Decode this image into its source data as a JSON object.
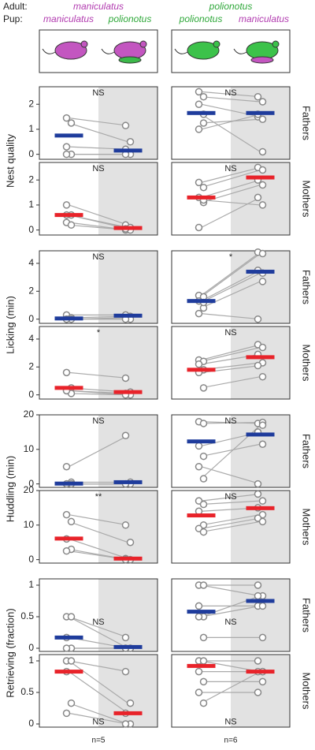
{
  "header": {
    "adult": "Adult:",
    "pup": "Pup:",
    "adult_species": [
      "maniculatus",
      "polionotus"
    ],
    "pup_species": [
      [
        "maniculatus",
        "polionotus"
      ],
      [
        "polionotus",
        "maniculatus"
      ]
    ]
  },
  "footer": [
    "n=5",
    "n=6"
  ],
  "chart_data": [
    {
      "type": "paired",
      "ylabel": "Nest quality",
      "annotation": "NS",
      "ylim": [
        -0.2,
        2.7
      ],
      "yticks": [
        0,
        1,
        2
      ],
      "mean_color": "#1f3c9c",
      "series": [
        {
          "values": [
            1.45,
            1.25,
            0.3,
            0,
            0
          ]
        },
        {
          "values": [
            1.15,
            0.5,
            0.2,
            0,
            0
          ]
        }
      ],
      "means": [
        0.75,
        0.15
      ]
    },
    {
      "type": "paired",
      "row_label": "Fathers",
      "annotation": "NS",
      "ylim": [
        -0.2,
        2.7
      ],
      "mean_color": "#1f3c9c",
      "series": [
        {
          "values": [
            2.5,
            2.3,
            2.0,
            1.25,
            1.0,
            1.6
          ]
        },
        {
          "values": [
            2.3,
            2.1,
            1.5,
            1.4,
            1.6,
            0.1
          ]
        }
      ],
      "means": [
        1.65,
        1.65
      ]
    },
    {
      "type": "paired",
      "annotation": "NS",
      "ylim": [
        -0.2,
        2.7
      ],
      "yticks": [
        0,
        1,
        2
      ],
      "mean_color": "#e8232a",
      "series": [
        {
          "values": [
            1.0,
            0.6,
            0.3,
            0.2,
            0.6
          ]
        },
        {
          "values": [
            0.2,
            0.1,
            0,
            0,
            0.05
          ]
        }
      ],
      "means": [
        0.6,
        0.08
      ]
    },
    {
      "type": "paired",
      "row_label": "Mothers",
      "annotation": "NS",
      "ylim": [
        -0.2,
        2.7
      ],
      "mean_color": "#e8232a",
      "series": [
        {
          "values": [
            1.9,
            1.7,
            1.3,
            1.1,
            0.1,
            1.2
          ]
        },
        {
          "values": [
            2.5,
            2.4,
            2.0,
            1.8,
            1.3,
            1.0
          ]
        }
      ],
      "means": [
        1.3,
        2.1
      ]
    },
    {
      "type": "paired",
      "ylabel": "Licking (min)",
      "annotation": "NS",
      "ylim": [
        -0.3,
        4.9
      ],
      "yticks": [
        0,
        2,
        4
      ],
      "mean_color": "#1f3c9c",
      "series": [
        {
          "values": [
            0.3,
            0.1,
            0,
            0,
            0
          ]
        },
        {
          "values": [
            0.3,
            0.2,
            0.1,
            0,
            0
          ]
        }
      ],
      "means": [
        0.05,
        0.25
      ]
    },
    {
      "type": "paired",
      "row_label": "Fathers",
      "annotation": "*",
      "ylim": [
        -0.3,
        4.9
      ],
      "mean_color": "#1f3c9c",
      "series": [
        {
          "values": [
            1.7,
            1.6,
            1.3,
            0.8,
            0.4,
            1.2
          ]
        },
        {
          "values": [
            4.8,
            4.7,
            3.5,
            2.7,
            0,
            3.3
          ]
        }
      ],
      "means": [
        1.3,
        3.4
      ]
    },
    {
      "type": "paired",
      "annotation": "*",
      "ylim": [
        -0.3,
        4.9
      ],
      "yticks": [
        0,
        2,
        4
      ],
      "mean_color": "#e8232a",
      "series": [
        {
          "values": [
            1.6,
            0.5,
            0.3,
            0.1,
            0.3
          ]
        },
        {
          "values": [
            1.2,
            0.2,
            0.1,
            0,
            0
          ]
        }
      ],
      "means": [
        0.5,
        0.2
      ]
    },
    {
      "type": "paired",
      "row_label": "Mothers",
      "annotation": "NS",
      "ylim": [
        -0.3,
        4.9
      ],
      "mean_color": "#e8232a",
      "series": [
        {
          "values": [
            2.5,
            2.4,
            2.2,
            1.8,
            1.6,
            0.5
          ]
        },
        {
          "values": [
            3.6,
            3.4,
            2.9,
            2.3,
            2.1,
            1.3
          ]
        }
      ],
      "means": [
        1.8,
        2.7
      ]
    },
    {
      "type": "paired",
      "ylabel": "Huddling (min)",
      "annotation": "NS",
      "ylim": [
        -1,
        20
      ],
      "yticks": [
        0,
        10,
        20
      ],
      "mean_color": "#1f3c9c",
      "series": [
        {
          "values": [
            5,
            0.5,
            0,
            0,
            0
          ]
        },
        {
          "values": [
            14,
            0.5,
            0,
            0,
            0
          ]
        }
      ],
      "means": [
        0.1,
        0.5
      ]
    },
    {
      "type": "paired",
      "row_label": "Fathers",
      "annotation": "NS",
      "ylim": [
        -1,
        20
      ],
      "mean_color": "#1f3c9c",
      "series": [
        {
          "values": [
            18,
            17.5,
            11,
            8,
            5,
            1.5
          ]
        },
        {
          "values": [
            17.5,
            17.8,
            15,
            11.5,
            0,
            17
          ]
        }
      ],
      "means": [
        12.3,
        14.3
      ]
    },
    {
      "type": "paired",
      "annotation": "**",
      "ylim": [
        -1,
        20
      ],
      "yticks": [
        0,
        10,
        20
      ],
      "mean_color": "#e8232a",
      "series": [
        {
          "values": [
            13,
            11,
            6,
            3,
            2.5
          ]
        },
        {
          "values": [
            10,
            5,
            0.3,
            0,
            0
          ]
        }
      ],
      "means": [
        6.1,
        0.3
      ]
    },
    {
      "type": "paired",
      "row_label": "Mothers",
      "annotation": "NS",
      "ylim": [
        -1,
        20
      ],
      "mean_color": "#e8232a",
      "series": [
        {
          "values": [
            17,
            16,
            14,
            10,
            9,
            8
          ]
        },
        {
          "values": [
            19,
            17,
            15,
            13,
            12,
            11
          ]
        }
      ],
      "means": [
        12.8,
        14.9
      ]
    },
    {
      "type": "paired",
      "ylabel": "Retrieving (fraction)",
      "annotation": "NS",
      "ylim": [
        -0.05,
        1.1
      ],
      "yticks": [
        0,
        0.5,
        1
      ],
      "mean_color": "#1f3c9c",
      "series": [
        {
          "values": [
            0.5,
            0.5,
            0.17,
            0,
            0
          ]
        },
        {
          "values": [
            0.17,
            0,
            0,
            0,
            0
          ]
        }
      ],
      "means": [
        0.17,
        0.02
      ]
    },
    {
      "type": "paired",
      "row_label": "Fathers",
      "annotation": "NS",
      "ylim": [
        -0.05,
        1.1
      ],
      "mean_color": "#1f3c9c",
      "series": [
        {
          "values": [
            1,
            1,
            0.67,
            0.5,
            0.5,
            0.17
          ]
        },
        {
          "values": [
            1,
            0.83,
            0.67,
            0.67,
            0.83,
            0.17
          ]
        }
      ],
      "means": [
        0.58,
        0.75
      ]
    },
    {
      "type": "paired",
      "annotation": "NS",
      "ylim": [
        -0.05,
        1.1
      ],
      "yticks": [
        0,
        0.5,
        1
      ],
      "mean_color": "#e8232a",
      "series": [
        {
          "values": [
            1,
            1,
            0.83,
            0.33,
            0.17
          ]
        },
        {
          "values": [
            0.83,
            0.33,
            0.17,
            0,
            0
          ]
        }
      ],
      "means": [
        0.83,
        0.17
      ]
    },
    {
      "type": "paired",
      "row_label": "Mothers",
      "annotation": "NS",
      "ylim": [
        -0.05,
        1.1
      ],
      "mean_color": "#e8232a",
      "series": [
        {
          "values": [
            1,
            1,
            0.83,
            0.67,
            0.5,
            0.33
          ]
        },
        {
          "values": [
            1,
            0.83,
            0.83,
            0.67,
            0.5,
            0.83
          ]
        }
      ],
      "means": [
        0.92,
        0.83
      ]
    }
  ]
}
